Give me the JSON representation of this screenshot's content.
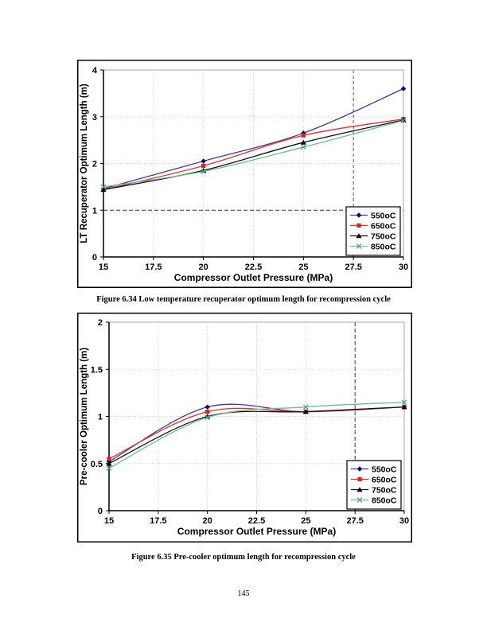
{
  "page": {
    "number": "145"
  },
  "figures": [
    {
      "caption": "Figure 6.34 Low temperature recuperator optimum length for recompression cycle"
    },
    {
      "caption": "Figure 6.35 Pre-cooler optimum length for recompression cycle"
    }
  ],
  "chart_data": [
    {
      "type": "line",
      "title": "",
      "xlabel": "Compressor Outlet Pressure (MPa)",
      "ylabel": "LT Recuperator Optimum Length (m)",
      "x": [
        15,
        20,
        25,
        30
      ],
      "xlim": [
        15,
        30
      ],
      "ylim": [
        0,
        4
      ],
      "xticks": [
        15,
        17.5,
        20,
        22.5,
        25,
        27.5,
        30
      ],
      "yticks": [
        0,
        1,
        2,
        3,
        4
      ],
      "grid": "light-dotted",
      "smooth": true,
      "legend_position": "lower-right",
      "series": [
        {
          "name": "550oC",
          "marker": "diamond",
          "line_color": "#3a3aa8",
          "marker_color": "#00008b",
          "values": [
            1.46,
            2.05,
            2.65,
            3.6
          ]
        },
        {
          "name": "650oC",
          "marker": "square",
          "line_color": "#ee2c2c",
          "marker_color": "#e81e1e",
          "values": [
            1.44,
            1.95,
            2.6,
            2.95
          ]
        },
        {
          "name": "750oC",
          "marker": "triangle",
          "line_color": "#111111",
          "marker_color": "#000000",
          "values": [
            1.44,
            1.85,
            2.45,
            2.93
          ]
        },
        {
          "name": "850oC",
          "marker": "x",
          "line_color": "#6cbd96",
          "marker_color": "#49a078",
          "values": [
            1.5,
            1.83,
            2.35,
            2.92
          ]
        }
      ],
      "ref_lines": [
        {
          "orientation": "horizontal",
          "value": 1,
          "color": "#3a3a3a",
          "width": 1,
          "dash": "5 3"
        },
        {
          "orientation": "vertical",
          "value": 27.5,
          "color": "#8f8f8f",
          "width": 1.5,
          "dash": "4 3"
        }
      ]
    },
    {
      "type": "line",
      "title": "",
      "xlabel": "Compressor Outlet Pressure (MPa)",
      "ylabel": "Pre-cooler Optimum Length (m)",
      "x": [
        15,
        20,
        25,
        30
      ],
      "xlim": [
        15,
        30
      ],
      "ylim": [
        0,
        2
      ],
      "xticks": [
        15,
        17.5,
        20,
        22.5,
        25,
        27.5,
        30
      ],
      "yticks": [
        0,
        0.5,
        1,
        1.5,
        2
      ],
      "grid": "light-dotted",
      "smooth": true,
      "legend_position": "lower-right",
      "series": [
        {
          "name": "550oC",
          "marker": "diamond",
          "line_color": "#3a3aa8",
          "marker_color": "#00008b",
          "values": [
            0.52,
            1.1,
            1.05,
            1.1
          ]
        },
        {
          "name": "650oC",
          "marker": "square",
          "line_color": "#ee2c2c",
          "marker_color": "#e81e1e",
          "values": [
            0.55,
            1.05,
            1.05,
            1.1
          ]
        },
        {
          "name": "750oC",
          "marker": "triangle",
          "line_color": "#111111",
          "marker_color": "#000000",
          "values": [
            0.5,
            1.0,
            1.05,
            1.1
          ]
        },
        {
          "name": "850oC",
          "marker": "x",
          "line_color": "#6cbd96",
          "marker_color": "#49a078",
          "values": [
            0.45,
            0.99,
            1.1,
            1.15
          ]
        }
      ],
      "ref_lines": [
        {
          "orientation": "vertical",
          "value": 27.5,
          "color": "#3a3a3a",
          "width": 1,
          "dash": "5 3"
        }
      ]
    }
  ]
}
